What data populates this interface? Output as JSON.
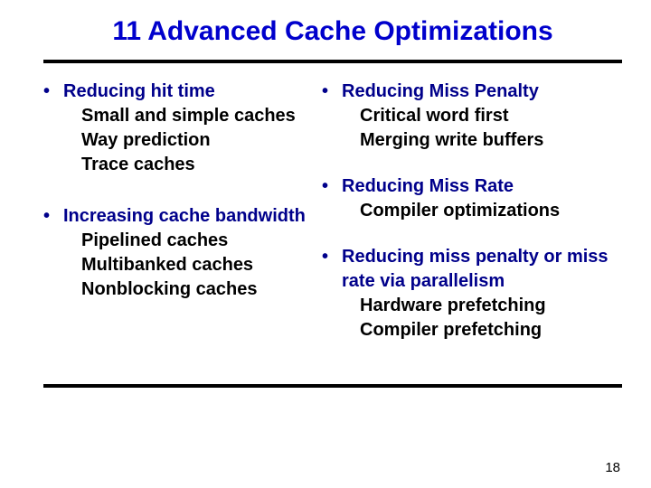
{
  "title": "11 Advanced Cache Optimizations",
  "page_number": "18",
  "colors": {
    "title": "#0000cc",
    "heading": "#00008b",
    "body": "#000000",
    "rule": "#000000",
    "background": "#ffffff"
  },
  "typography": {
    "title_fontsize": 30,
    "body_fontsize": 20,
    "font_family": "Arial",
    "font_weight": "bold"
  },
  "left": {
    "block1": {
      "heading": "Reducing hit time",
      "items": [
        "Small and simple caches",
        "Way prediction",
        "Trace caches"
      ]
    },
    "block2": {
      "heading": "Increasing cache bandwidth",
      "items": [
        "Pipelined caches",
        "Multibanked caches",
        "Nonblocking caches"
      ]
    }
  },
  "right": {
    "block1": {
      "heading": "Reducing Miss Penalty",
      "items": [
        "Critical word first",
        "Merging write buffers"
      ]
    },
    "block2": {
      "heading": "Reducing Miss Rate",
      "items": [
        "Compiler optimizations"
      ]
    },
    "block3": {
      "heading": "Reducing miss penalty or miss rate via parallelism",
      "items": [
        "Hardware prefetching",
        "Compiler prefetching"
      ]
    }
  }
}
